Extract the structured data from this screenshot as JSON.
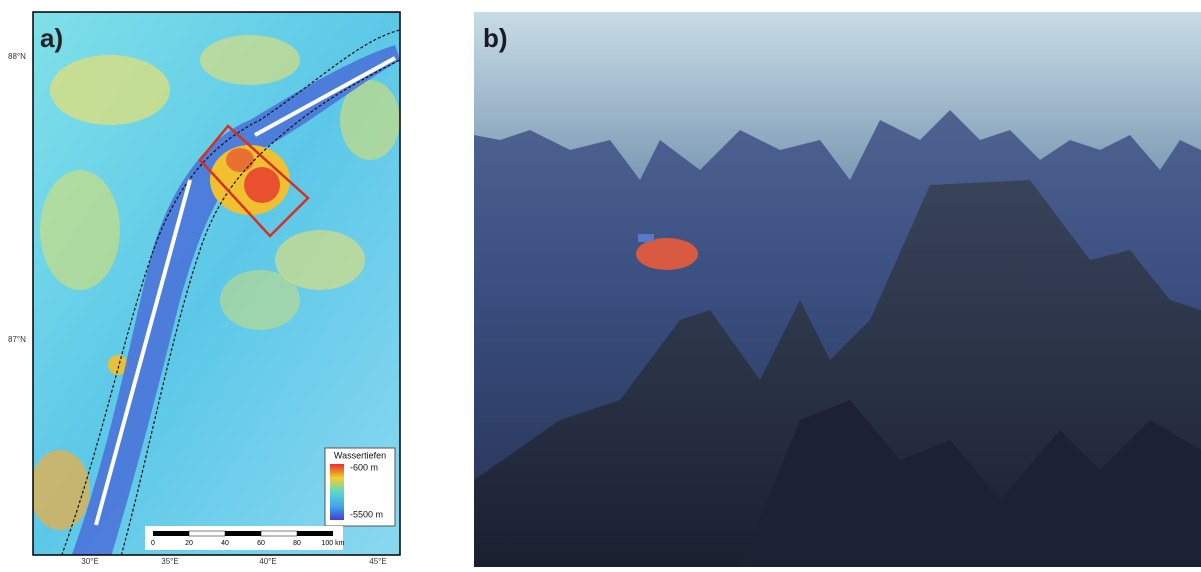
{
  "panels": [
    {
      "label": "a)",
      "legend": {
        "title": "Wassertiefen",
        "max": "-600 m",
        "min": "-5500 m"
      },
      "scale_bar": [
        "0",
        "20",
        "40",
        "60",
        "80",
        "100 km"
      ],
      "lat_labels": [
        "88°N",
        "87°N"
      ],
      "lon_labels": [
        "30°E",
        "35°E",
        "40°E",
        "45°E"
      ]
    },
    {
      "label": "b)"
    }
  ]
}
